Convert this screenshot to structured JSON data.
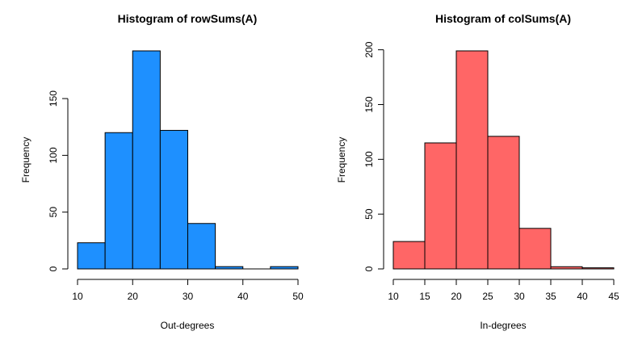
{
  "chart_data": [
    {
      "type": "histogram",
      "title": "Histogram of rowSums(A)",
      "xlabel": "Out-degrees",
      "ylabel": "Frequency",
      "bin_edges": [
        10,
        15,
        20,
        25,
        30,
        35,
        40,
        45,
        50
      ],
      "counts": [
        23,
        120,
        192,
        122,
        40,
        2,
        0,
        2
      ],
      "bar_color": "#1E90FF",
      "xlim": [
        10,
        50
      ],
      "ylim": [
        0,
        192
      ],
      "xticks": [
        10,
        20,
        30,
        40,
        50
      ],
      "yticks": [
        0,
        50,
        100,
        150
      ],
      "grid": false
    },
    {
      "type": "histogram",
      "title": "Histogram of colSums(A)",
      "xlabel": "In-degrees",
      "ylabel": "Frequency",
      "bin_edges": [
        10,
        15,
        20,
        25,
        30,
        35,
        40,
        45
      ],
      "counts": [
        25,
        115,
        199,
        121,
        37,
        2,
        1
      ],
      "bar_color": "#FF6666",
      "xlim": [
        10,
        45
      ],
      "ylim": [
        0,
        199
      ],
      "xticks": [
        10,
        15,
        20,
        25,
        30,
        35,
        40,
        45
      ],
      "yticks": [
        0,
        50,
        100,
        150,
        200
      ],
      "grid": false
    }
  ]
}
